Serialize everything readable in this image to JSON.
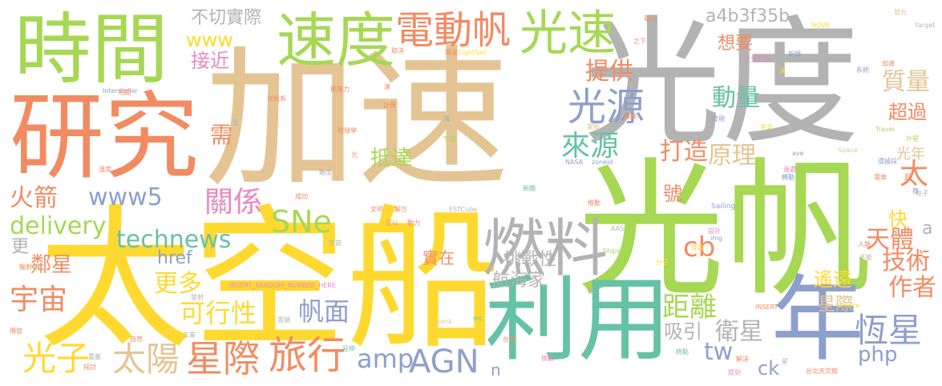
{
  "colors": {
    "orange": "#f28b62",
    "teal": "#66c2a5",
    "green": "#a6d854",
    "yellow": "#ffd92f",
    "tan": "#e5c494",
    "gray": "#b3b3b3",
    "blue": "#8da0cb",
    "pink": "#e78ac3"
  },
  "words": [
    {
      "text": "加速",
      "color": "tan"
    },
    {
      "text": "光度",
      "color": "gray"
    },
    {
      "text": "太空船",
      "color": "yellow"
    },
    {
      "text": "光帆",
      "color": "green"
    },
    {
      "text": "研究",
      "color": "orange"
    },
    {
      "text": "時間",
      "color": "green"
    },
    {
      "text": "利用",
      "color": "teal"
    },
    {
      "text": "速度",
      "color": "green"
    },
    {
      "text": "年",
      "color": "blue"
    },
    {
      "text": "燃料",
      "color": "gray"
    },
    {
      "text": "光速",
      "color": "green"
    },
    {
      "text": "電動帆",
      "color": "orange"
    },
    {
      "text": "光源",
      "color": "blue"
    },
    {
      "text": "來源",
      "color": "teal"
    },
    {
      "text": "旅行",
      "color": "orange"
    },
    {
      "text": "星際",
      "color": "orange"
    },
    {
      "text": "太陽",
      "color": "tan"
    },
    {
      "text": "光子",
      "color": "yellow"
    },
    {
      "text": "AGN",
      "color": "blue"
    },
    {
      "text": "恆星",
      "color": "blue"
    },
    {
      "text": "SNe",
      "color": "green"
    },
    {
      "text": "technews",
      "color": "teal"
    },
    {
      "text": "www5",
      "color": "blue"
    },
    {
      "text": "關係",
      "color": "pink"
    },
    {
      "text": "delivery",
      "color": "green"
    },
    {
      "text": "宇宙",
      "color": "orange"
    },
    {
      "text": "火箭",
      "color": "orange"
    },
    {
      "text": "帆面",
      "color": "blue"
    },
    {
      "text": "距離",
      "color": "green"
    },
    {
      "text": "可行性",
      "color": "yellow"
    },
    {
      "text": "更多",
      "color": "yellow"
    },
    {
      "text": "amp",
      "color": "blue"
    },
    {
      "text": "php",
      "color": "blue"
    },
    {
      "text": "tw",
      "color": "blue"
    },
    {
      "text": "cb",
      "color": "orange"
    },
    {
      "text": "技術",
      "color": "orange"
    },
    {
      "text": "天體",
      "color": "orange"
    },
    {
      "text": "作者",
      "color": "orange"
    },
    {
      "text": "衛星",
      "color": "gray"
    },
    {
      "text": "吸引",
      "color": "gray"
    },
    {
      "text": "原理",
      "color": "tan"
    },
    {
      "text": "打造",
      "color": "orange"
    },
    {
      "text": "動量",
      "color": "teal"
    },
    {
      "text": "質量",
      "color": "tan"
    },
    {
      "text": "提供",
      "color": "orange"
    },
    {
      "text": "a4b3f35b",
      "color": "gray"
    },
    {
      "text": "www",
      "color": "yellow"
    },
    {
      "text": "接近",
      "color": "pink"
    },
    {
      "text": "不切實際",
      "color": "gray"
    },
    {
      "text": "想要",
      "color": "orange"
    },
    {
      "text": "超過",
      "color": "orange"
    },
    {
      "text": "太",
      "color": "orange"
    },
    {
      "text": "快",
      "color": "yellow"
    },
    {
      "text": "光年",
      "color": "tan"
    },
    {
      "text": "抵達",
      "color": "green"
    },
    {
      "text": "挑戰性",
      "color": "gray"
    },
    {
      "text": "航海家",
      "color": "gray"
    },
    {
      "text": "實在",
      "color": "orange"
    },
    {
      "text": "href",
      "color": "blue"
    },
    {
      "text": "鄰星",
      "color": "orange"
    },
    {
      "text": "遙遠",
      "color": "yellow"
    },
    {
      "text": "星際",
      "color": "tan"
    },
    {
      "text": "ck",
      "color": "blue"
    },
    {
      "text": "n",
      "color": "blue"
    },
    {
      "text": "需",
      "color": "orange"
    },
    {
      "text": "更",
      "color": "gray"
    },
    {
      "text": "號",
      "color": "orange"
    },
    {
      "text": "a",
      "color": "gray"
    },
    {
      "text": "Interstellar",
      "color": "blue"
    },
    {
      "text": "LightSail",
      "color": "yellow"
    },
    {
      "text": "NASA",
      "color": "blue"
    },
    {
      "text": "ESTCube",
      "color": "gray"
    },
    {
      "text": "Sailing",
      "color": "blue"
    },
    {
      "text": "Ships",
      "color": "green"
    },
    {
      "text": "AAS",
      "color": "gray"
    },
    {
      "text": "INSERT",
      "color": "orange"
    },
    {
      "text": "Source",
      "color": "yellow"
    },
    {
      "text": "Space",
      "color": "tan"
    },
    {
      "text": "Travel",
      "color": "green"
    },
    {
      "text": "NOVA",
      "color": "yellow"
    },
    {
      "text": "target",
      "color": "gray"
    },
    {
      "text": "_blank",
      "color": "tan"
    },
    {
      "text": "INSERT_RANDOM_NUMBER_HERE",
      "color": "pink"
    },
    {
      "text": "zoneid",
      "color": "blue"
    },
    {
      "text": "src",
      "color": "teal"
    },
    {
      "text": "img",
      "color": "blue"
    },
    {
      "text": "ave",
      "color": "blue"
    },
    {
      "text": "取代",
      "color": "orange"
    },
    {
      "text": "發光",
      "color": "tan"
    },
    {
      "text": "取決",
      "color": "orange"
    },
    {
      "text": "新穎",
      "color": "blue"
    },
    {
      "text": "系統",
      "color": "blue"
    },
    {
      "text": "百分之幾",
      "color": "pink"
    },
    {
      "text": "推進力",
      "color": "orange"
    },
    {
      "text": "計算",
      "color": "orange"
    },
    {
      "text": "物理學",
      "color": "orange"
    },
    {
      "text": "加速",
      "color": "orange"
    },
    {
      "text": "外星",
      "color": "green"
    },
    {
      "text": "柱子",
      "color": "gray"
    },
    {
      "text": "分子",
      "color": "yellow"
    },
    {
      "text": "工業",
      "color": "gray"
    },
    {
      "text": "探討",
      "color": "orange"
    },
    {
      "text": "自然",
      "color": "orange"
    },
    {
      "text": "重量",
      "color": "gray"
    },
    {
      "text": "終點",
      "color": "teal"
    },
    {
      "text": "發射",
      "color": "gray"
    },
    {
      "text": "台灣",
      "color": "orange"
    },
    {
      "text": "台北天文館",
      "color": "orange"
    },
    {
      "text": "提到",
      "color": "pink"
    },
    {
      "text": "解決",
      "color": "orange"
    },
    {
      "text": "延伸",
      "color": "teal"
    },
    {
      "text": "雲端",
      "color": "gray"
    },
    {
      "text": "成功",
      "color": "orange"
    },
    {
      "text": "微觀",
      "color": "pink"
    },
    {
      "text": "推動",
      "color": "orange"
    },
    {
      "text": "理論",
      "color": "yellow"
    },
    {
      "text": "設計",
      "color": "pink"
    },
    {
      "text": "聲波",
      "color": "orange"
    },
    {
      "text": "動力",
      "color": "orange"
    },
    {
      "text": "解方",
      "color": "orange"
    },
    {
      "text": "文明",
      "color": "orange"
    },
    {
      "text": "足以",
      "color": "orange"
    },
    {
      "text": "新聞",
      "color": "teal"
    },
    {
      "text": "宇宙",
      "color": "gray"
    },
    {
      "text": "實驗",
      "color": "tan"
    },
    {
      "text": "也許",
      "color": "gray"
    },
    {
      "text": "本文",
      "color": "yellow"
    },
    {
      "text": "發現",
      "color": "blue"
    },
    {
      "text": "精細",
      "color": "orange"
    },
    {
      "text": "繫",
      "color": "gray"
    },
    {
      "text": "光",
      "color": "orange"
    },
    {
      "text": "速",
      "color": "orange"
    },
    {
      "text": "海",
      "color": "teal"
    },
    {
      "text": "之下",
      "color": "orange"
    },
    {
      "text": "遠",
      "color": "yellow"
    },
    {
      "text": "相距",
      "color": "orange"
    },
    {
      "text": "光帆系",
      "color": "orange"
    },
    {
      "text": "宇宙",
      "color": "green"
    },
    {
      "text": "溫度",
      "color": "orange"
    },
    {
      "text": "難度",
      "color": "gray"
    },
    {
      "text": "轉動",
      "color": "blue"
    },
    {
      "text": "遠處",
      "color": "pink"
    },
    {
      "text": "人類",
      "color": "orange"
    },
    {
      "text": "環繞段",
      "color": "blue"
    },
    {
      "text": "電車",
      "color": "orange"
    },
    {
      "text": "超",
      "color": "orange"
    },
    {
      "text": "簡",
      "color": "blue"
    },
    {
      "text": "不能",
      "color": "gray"
    },
    {
      "text": "輻射",
      "color": "orange"
    },
    {
      "text": "傳發",
      "color": "orange"
    },
    {
      "text": "星",
      "color": "gray"
    },
    {
      "text": "能",
      "color": "gray"
    }
  ]
}
